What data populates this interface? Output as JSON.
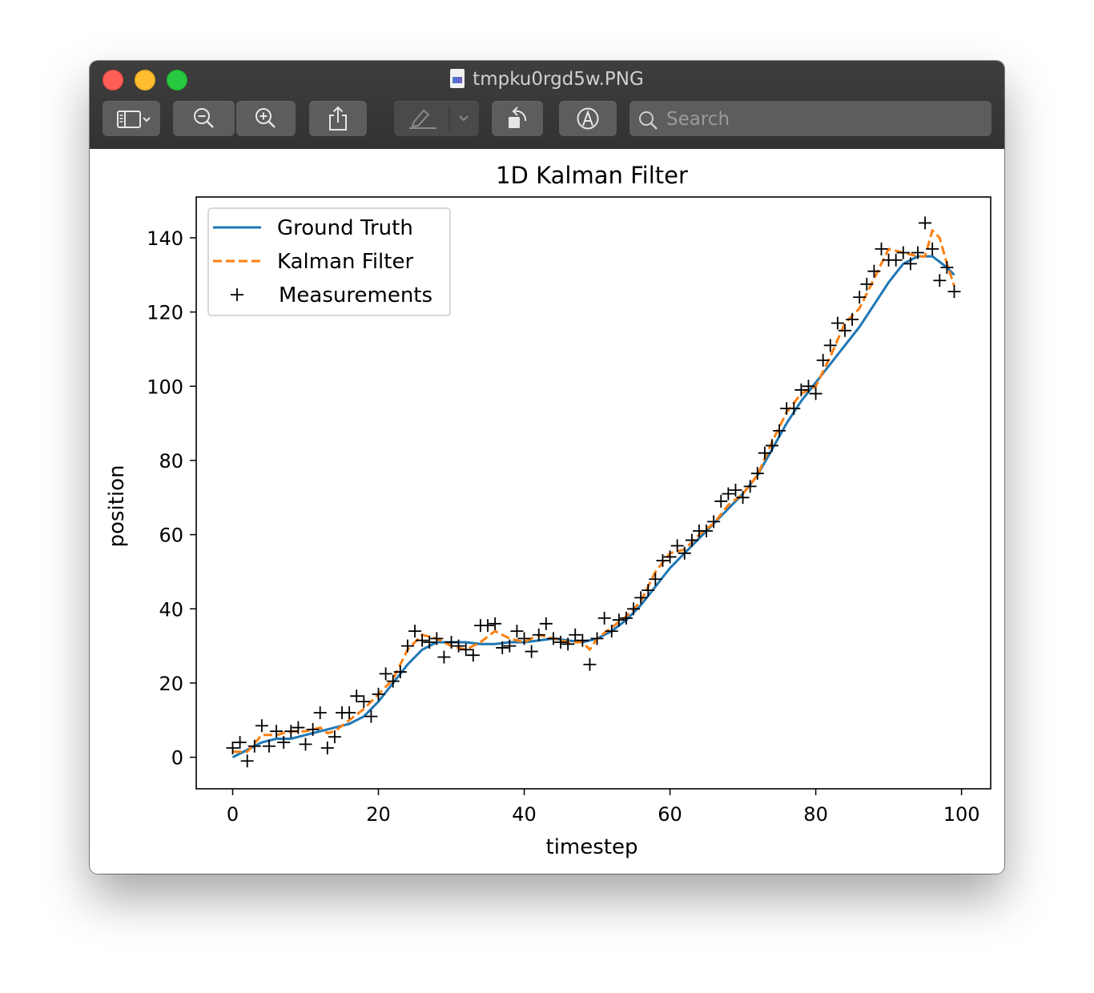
{
  "window": {
    "title": "tmpku0rgd5w.PNG"
  },
  "toolbar": {
    "search_placeholder": "Search"
  },
  "chart_data": {
    "type": "line",
    "title": "1D Kalman Filter",
    "xlabel": "timestep",
    "ylabel": "position",
    "xlim": [
      -5,
      104
    ],
    "ylim": [
      -8.5,
      151
    ],
    "xticks": [
      0,
      20,
      40,
      60,
      80,
      100
    ],
    "yticks": [
      0,
      20,
      40,
      60,
      80,
      100,
      120,
      140
    ],
    "legend": {
      "placement": "top-left",
      "entries": [
        "Ground Truth",
        "Kalman Filter",
        "Measurements"
      ]
    },
    "colors": {
      "ground_truth": "#1f77b4",
      "kalman": "#ff7f0e",
      "measurements": "#000000"
    },
    "series": [
      {
        "name": "Ground Truth",
        "style": "solid",
        "x": [
          0,
          2,
          4,
          6,
          8,
          10,
          12,
          14,
          16,
          18,
          20,
          22,
          24,
          26,
          28,
          30,
          32,
          34,
          36,
          38,
          40,
          42,
          44,
          46,
          48,
          50,
          52,
          54,
          56,
          58,
          60,
          62,
          64,
          66,
          68,
          70,
          72,
          74,
          76,
          78,
          80,
          82,
          84,
          86,
          88,
          90,
          92,
          94,
          96,
          98,
          99
        ],
        "y": [
          0,
          2,
          4,
          5,
          5,
          6,
          7,
          8,
          9,
          11,
          15,
          20,
          25,
          29,
          31,
          31,
          31,
          30.5,
          30.5,
          31,
          31,
          31.5,
          32,
          31.5,
          31,
          32,
          34,
          37,
          41,
          46,
          51,
          55,
          59,
          63,
          67,
          71,
          76,
          83,
          90,
          96,
          101,
          106,
          111,
          116,
          122,
          128,
          133,
          135,
          135,
          132,
          130
        ]
      },
      {
        "name": "Kalman Filter",
        "style": "dashed",
        "x": [
          0,
          2,
          4,
          6,
          8,
          10,
          12,
          13,
          14,
          16,
          18,
          20,
          22,
          24,
          26,
          28,
          30,
          32,
          34,
          36,
          38,
          40,
          42,
          44,
          46,
          48,
          49,
          50,
          52,
          54,
          56,
          58,
          60,
          62,
          64,
          66,
          68,
          70,
          72,
          74,
          76,
          78,
          80,
          82,
          84,
          86,
          88,
          90,
          92,
          94,
          95,
          96,
          97,
          98,
          99
        ],
        "y": [
          1.5,
          1.5,
          6,
          6,
          7,
          7,
          8,
          6.5,
          7,
          10,
          13,
          17,
          21,
          29,
          33,
          32,
          30,
          29,
          31,
          34,
          32,
          31,
          33,
          32,
          31,
          31,
          29,
          32,
          35,
          38,
          42,
          50,
          55,
          56,
          60,
          63,
          68,
          71,
          76,
          85,
          93,
          98,
          100,
          108,
          117,
          121,
          129,
          137,
          136,
          135,
          135,
          142,
          140,
          133,
          127
        ]
      },
      {
        "name": "Measurements",
        "style": "marker",
        "x": [
          0,
          1,
          2,
          3,
          4,
          5,
          6,
          7,
          8,
          9,
          10,
          11,
          12,
          13,
          14,
          15,
          16,
          17,
          18,
          19,
          20,
          21,
          22,
          23,
          24,
          25,
          26,
          27,
          28,
          29,
          30,
          31,
          32,
          33,
          34,
          35,
          36,
          37,
          38,
          39,
          40,
          41,
          42,
          43,
          44,
          45,
          46,
          47,
          48,
          49,
          50,
          51,
          52,
          53,
          54,
          55,
          56,
          57,
          58,
          59,
          60,
          61,
          62,
          63,
          64,
          65,
          66,
          67,
          68,
          69,
          70,
          71,
          72,
          73,
          74,
          75,
          76,
          77,
          78,
          79,
          80,
          81,
          82,
          83,
          84,
          85,
          86,
          87,
          88,
          89,
          90,
          91,
          92,
          93,
          94,
          95,
          96,
          97,
          98,
          99
        ],
        "y": [
          2.5,
          4,
          -1,
          3,
          8.5,
          3,
          7,
          4,
          7,
          8,
          3.5,
          7.5,
          12,
          2.5,
          5.5,
          12,
          12,
          16.5,
          15,
          11,
          17,
          22.5,
          20.5,
          23,
          30,
          34,
          31.5,
          31,
          32,
          27,
          31,
          30,
          29,
          27.5,
          35.5,
          35.5,
          36,
          29.5,
          30,
          34,
          32,
          28.5,
          33,
          36,
          32,
          31,
          30.5,
          33,
          31.5,
          25,
          32,
          37.5,
          34,
          37,
          37.5,
          40,
          43,
          45,
          48,
          53,
          54,
          57,
          55,
          58.5,
          61,
          61,
          63.5,
          69,
          71,
          72,
          70,
          73,
          76.5,
          82,
          84,
          88,
          94,
          94,
          99,
          100,
          98,
          107,
          111,
          117,
          115,
          118,
          124,
          127.5,
          131,
          137,
          134,
          134,
          136,
          133,
          136,
          144,
          137,
          128.5,
          132,
          125.5
        ]
      }
    ]
  }
}
